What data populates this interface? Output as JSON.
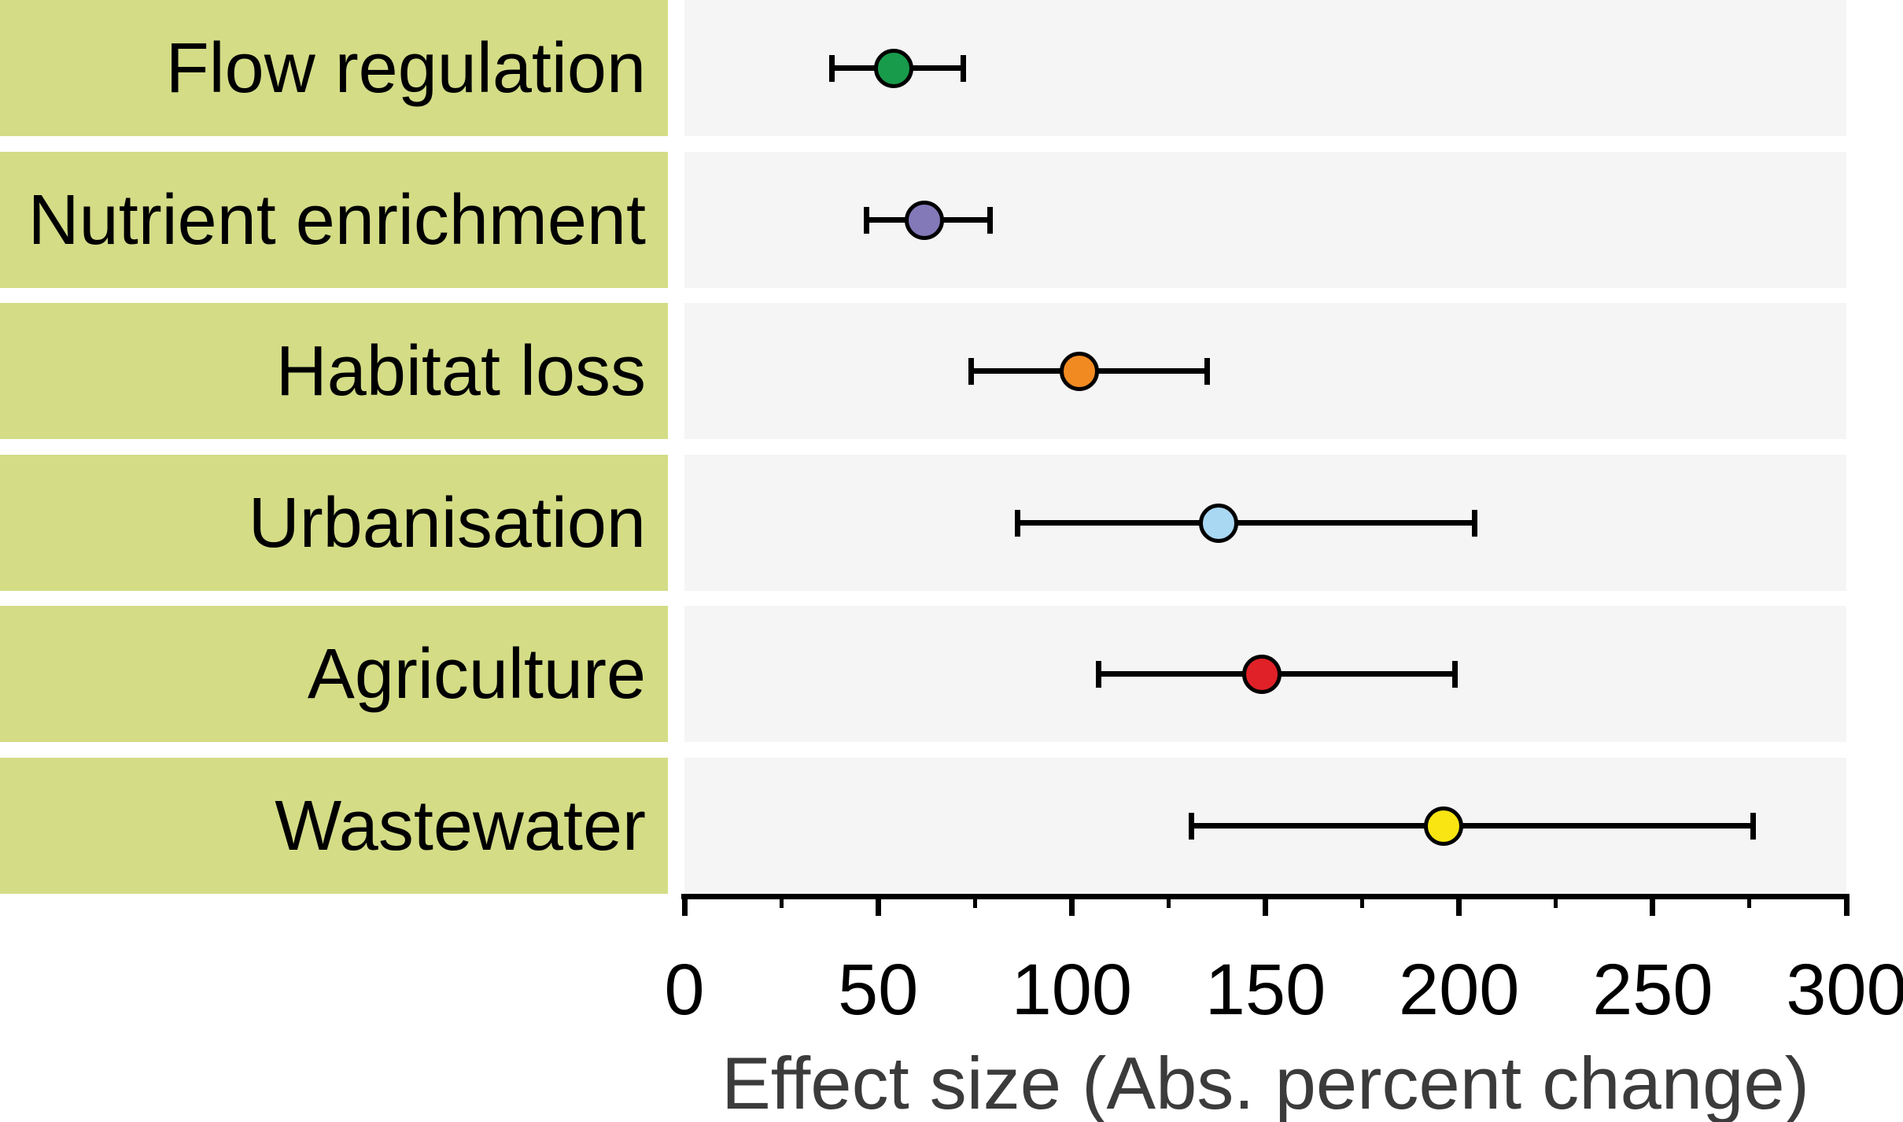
{
  "chart_data": {
    "type": "scatter",
    "subtype": "forest-plot-horizontal",
    "title": "",
    "xlabel": "Effect size (Abs. percent change)",
    "ylabel": "",
    "xlim": [
      0,
      300
    ],
    "x_major_ticks": [
      0,
      50,
      100,
      150,
      200,
      250,
      300
    ],
    "x_minor_ticks": [
      25,
      75,
      125,
      175,
      225,
      275
    ],
    "grid": false,
    "legend": "none",
    "rows": [
      {
        "label": "Flow regulation",
        "value": 54,
        "ci_low": 38,
        "ci_high": 72,
        "color": "#189b4b"
      },
      {
        "label": "Nutrient enrichment",
        "value": 62,
        "ci_low": 47,
        "ci_high": 79,
        "color": "#8379b8"
      },
      {
        "label": "Habitat loss",
        "value": 102,
        "ci_low": 74,
        "ci_high": 135,
        "color": "#f18a21"
      },
      {
        "label": "Urbanisation",
        "value": 138,
        "ci_low": 86,
        "ci_high": 204,
        "color": "#a9d8f3"
      },
      {
        "label": "Agriculture",
        "value": 149,
        "ci_low": 107,
        "ci_high": 199,
        "color": "#e02127"
      },
      {
        "label": "Wastewater",
        "value": 196,
        "ci_low": 131,
        "ci_high": 276,
        "color": "#f8e512"
      }
    ],
    "colors": {
      "label_band": "#d4dc86",
      "panel_background": "#f4f5f4",
      "axis": "#000000",
      "tick_label": "#000000",
      "axis_title": "#3b3b3b"
    }
  }
}
